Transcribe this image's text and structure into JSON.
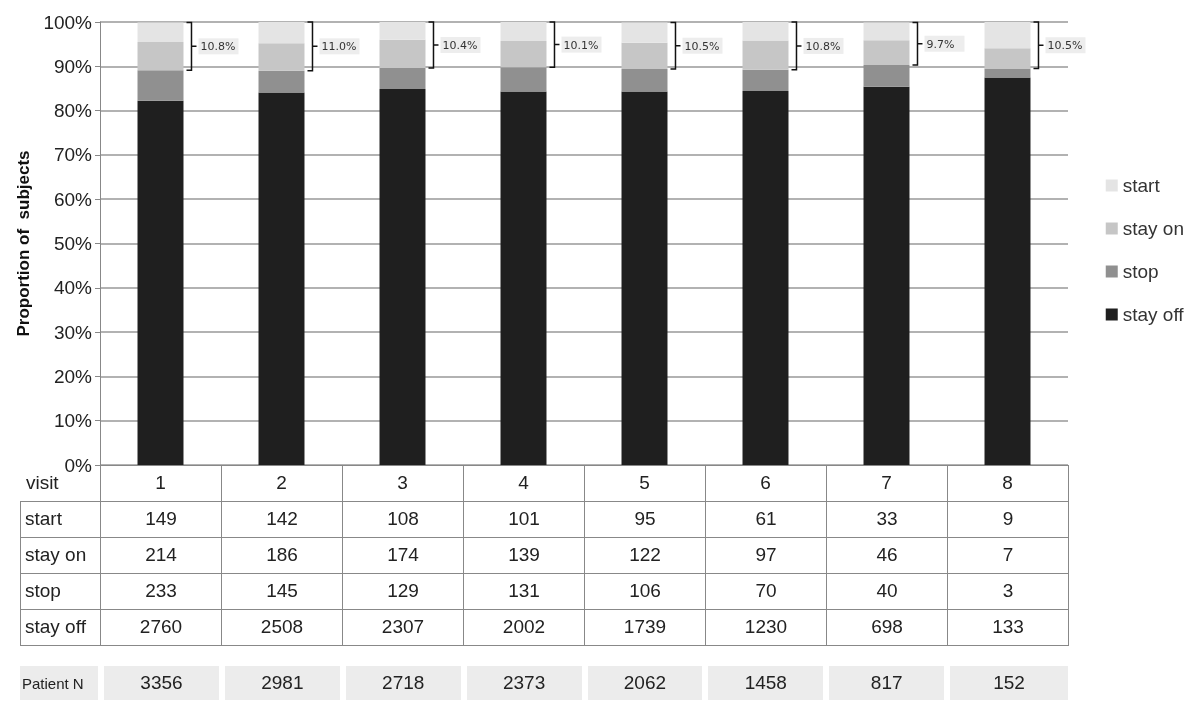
{
  "chart_data": [
    {
      "type": "bar",
      "stacked": true,
      "xlabel": "visit",
      "ylabel": "Proportion of  subjects",
      "categories": [
        "1",
        "2",
        "3",
        "4",
        "5",
        "6",
        "7",
        "8"
      ],
      "series": [
        {
          "name": "stay off",
          "color": "#1f1f1f",
          "values": [
            82.2,
            84.1,
            84.9,
            84.3,
            84.3,
            84.4,
            85.4,
            87.5
          ]
        },
        {
          "name": "stop",
          "color": "#909090",
          "values": [
            6.9,
            4.9,
            4.7,
            5.5,
            5.1,
            4.8,
            4.9,
            2.0
          ]
        },
        {
          "name": "stay on",
          "color": "#c6c6c6",
          "values": [
            6.4,
            6.2,
            6.4,
            5.9,
            5.9,
            6.6,
            5.6,
            4.6
          ]
        },
        {
          "name": "start",
          "color": "#e4e4e4",
          "values": [
            4.4,
            4.8,
            4.0,
            4.3,
            4.6,
            4.2,
            4.0,
            5.9
          ]
        }
      ],
      "ylim": [
        0,
        100
      ],
      "yticks": [
        {
          "value": 0,
          "label": "0%"
        },
        {
          "value": 10,
          "label": "10%"
        },
        {
          "value": 20,
          "label": "20%"
        },
        {
          "value": 30,
          "label": "30%"
        },
        {
          "value": 40,
          "label": "40%"
        },
        {
          "value": 50,
          "label": "50%"
        },
        {
          "value": 60,
          "label": "60%"
        },
        {
          "value": 70,
          "label": "70%"
        },
        {
          "value": 80,
          "label": "80%"
        },
        {
          "value": 90,
          "label": "90%"
        },
        {
          "value": 100,
          "label": "100%"
        }
      ],
      "grid": "y",
      "legend": "right",
      "annotations": [
        "10.8%",
        "11.0%",
        "10.4%",
        "10.1%",
        "10.5%",
        "10.8%",
        "9.7%",
        "10.5%"
      ]
    },
    {
      "type": "other",
      "annotations": [
        "start",
        "149",
        "142",
        "108",
        "101",
        "95",
        "61",
        "33",
        "9",
        "stay on",
        "214",
        "186",
        "174",
        "139",
        "122",
        "97",
        "46",
        "7",
        "stop",
        "233",
        "145",
        "129",
        "131",
        "106",
        "70",
        "40",
        "3",
        "stay off",
        "2760",
        "2508",
        "2307",
        "2002",
        "1739",
        "1230",
        "698",
        "133",
        "Patient N",
        "3356",
        "2981",
        "2718",
        "2373",
        "2062",
        "1458",
        "817",
        "152"
      ]
    }
  ]
}
